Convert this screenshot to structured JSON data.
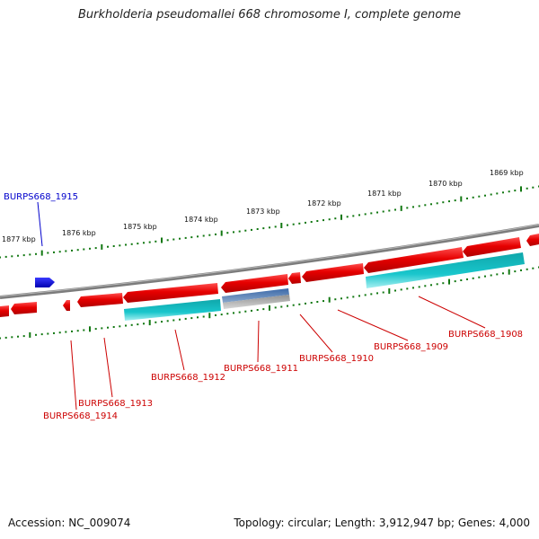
{
  "title": "Burkholderia pseudomallei 668 chromosome I, complete genome",
  "footer": {
    "accession": "Accession: NC_009074",
    "topology": "Topology: circular; Length: 3,912,947 bp; Genes: 4,000"
  },
  "colors": {
    "gene_red": "#e60000",
    "gene_blue": "#0000dd",
    "cds_cyan": "#19c2c8",
    "misc_steel": "#4a78b0",
    "misc_gray": "#a0a0a0",
    "backbone": "#808080",
    "tick_green": "#117711",
    "label_red": "#cc0000",
    "label_blue": "#0000cc",
    "kbp_text": "#111111"
  },
  "kbp_labels": [
    "1877 kbp",
    "1876 kbp",
    "1875 kbp",
    "1874 kbp",
    "1873 kbp",
    "1872 kbp",
    "1871 kbp",
    "1870 kbp",
    "1869 kbp"
  ],
  "gene_labels": [
    {
      "text": "BURPS668_1915",
      "color": "blue"
    },
    {
      "text": "BURPS668_1914",
      "color": "red"
    },
    {
      "text": "BURPS668_1913",
      "color": "red"
    },
    {
      "text": "BURPS668_1912",
      "color": "red"
    },
    {
      "text": "BURPS668_1911",
      "color": "red"
    },
    {
      "text": "BURPS668_1910",
      "color": "red"
    },
    {
      "text": "BURPS668_1909",
      "color": "red"
    },
    {
      "text": "BURPS668_1908",
      "color": "red"
    }
  ]
}
